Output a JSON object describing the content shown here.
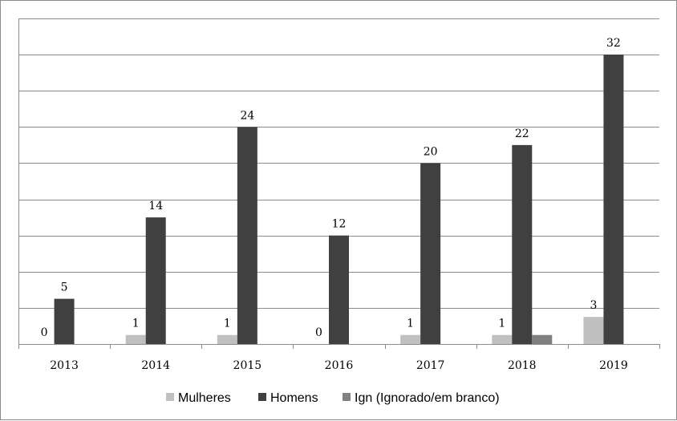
{
  "chart_data": {
    "type": "bar",
    "categories": [
      "2013",
      "2014",
      "2015",
      "2016",
      "2017",
      "2018",
      "2019"
    ],
    "series": [
      {
        "name": "Mulheres",
        "color": "#c0c0c0",
        "values": [
          0,
          1,
          1,
          0,
          1,
          1,
          3
        ]
      },
      {
        "name": "Homens",
        "color": "#404040",
        "values": [
          5,
          14,
          24,
          12,
          20,
          22,
          32
        ]
      },
      {
        "name": "Ign (Ignorado/em branco)",
        "color": "#808080",
        "values": [
          0,
          0,
          0,
          0,
          0,
          1,
          0
        ]
      }
    ],
    "data_labels": [
      {
        "series": 0,
        "category": 0,
        "text": "0"
      },
      {
        "series": 1,
        "category": 0,
        "text": "5"
      },
      {
        "series": 0,
        "category": 1,
        "text": "1"
      },
      {
        "series": 1,
        "category": 1,
        "text": "14"
      },
      {
        "series": 0,
        "category": 2,
        "text": "1"
      },
      {
        "series": 1,
        "category": 2,
        "text": "24"
      },
      {
        "series": 0,
        "category": 3,
        "text": "0"
      },
      {
        "series": 1,
        "category": 3,
        "text": "12"
      },
      {
        "series": 0,
        "category": 4,
        "text": "1"
      },
      {
        "series": 1,
        "category": 4,
        "text": "20"
      },
      {
        "series": 0,
        "category": 5,
        "text": "1"
      },
      {
        "series": 1,
        "category": 5,
        "text": "22"
      },
      {
        "series": 0,
        "category": 6,
        "text": "3"
      },
      {
        "series": 1,
        "category": 6,
        "text": "32"
      }
    ],
    "ylim": [
      0,
      36
    ],
    "ytick_step": 4,
    "grid": true,
    "legend_position": "bottom",
    "title": "",
    "xlabel": "",
    "ylabel": ""
  }
}
